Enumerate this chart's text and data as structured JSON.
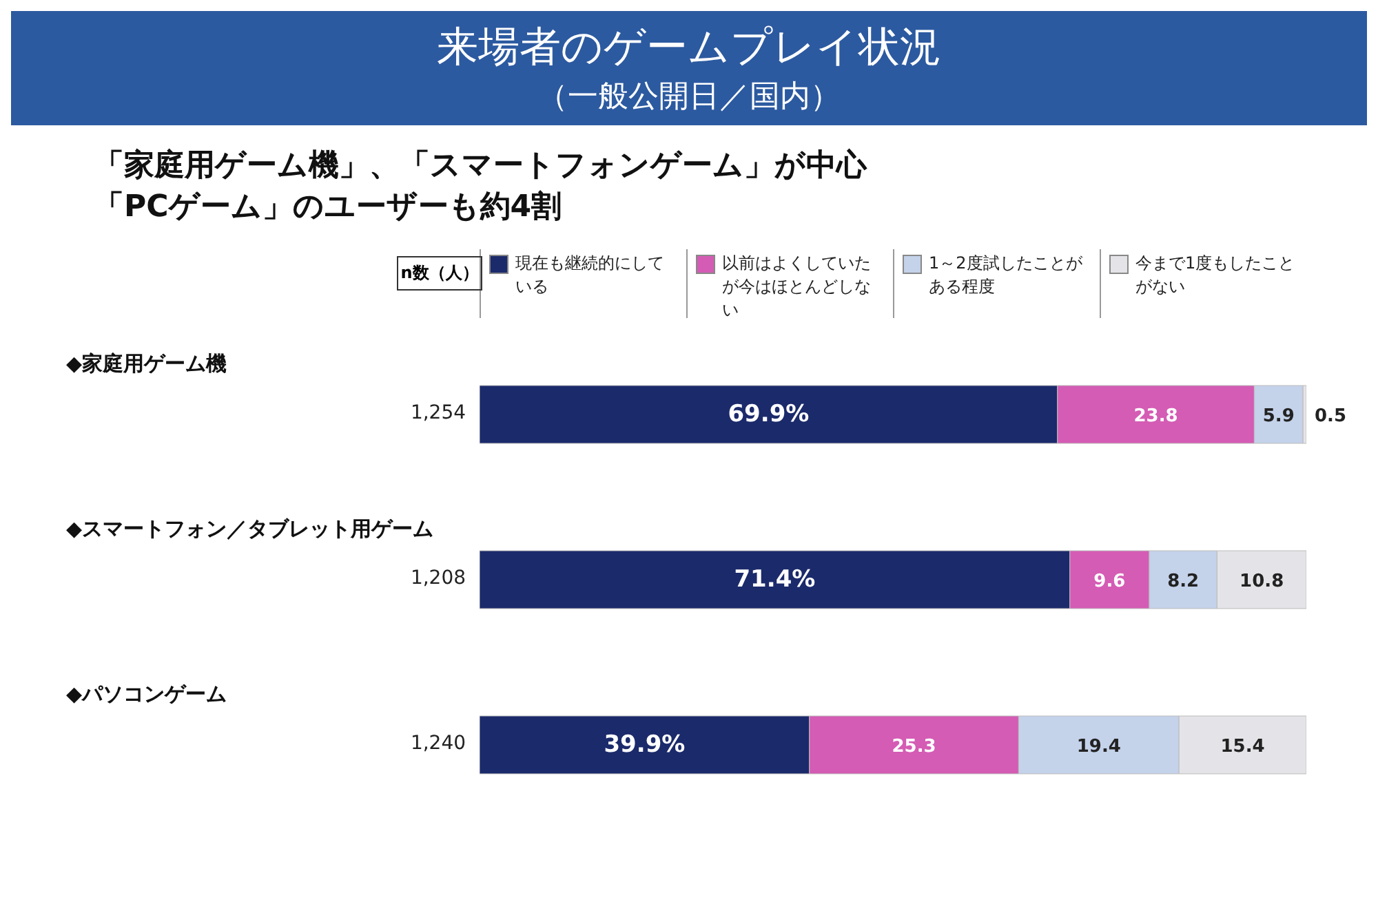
{
  "chart_data": {
    "type": "bar",
    "orientation": "horizontal",
    "stacked": true,
    "title": "来場者のゲームプレイ状況",
    "subtitle": "（一般公開日／国内）",
    "categories": [
      "◆家庭用ゲーム機",
      "◆スマートフォン／タブレット用ゲーム",
      "◆パソコンゲーム"
    ],
    "series": [
      {
        "name": "現在も継続的にしている",
        "color": "#1b2a6b",
        "values": [
          69.9,
          71.4,
          39.9
        ],
        "value_labels": [
          "69.9%",
          "71.4%",
          "39.9%"
        ]
      },
      {
        "name": "以前はよくしていたが今はほとんどしない",
        "color": "#d45cb4",
        "values": [
          23.8,
          9.6,
          25.3
        ],
        "value_labels": [
          "23.8",
          "9.6",
          "25.3"
        ]
      },
      {
        "name": "1～2度試したことがある程度",
        "color": "#c4d2ea",
        "values": [
          5.9,
          8.2,
          19.4
        ],
        "value_labels": [
          "5.9",
          "8.2",
          "19.4"
        ]
      },
      {
        "name": "今まで1度もしたことがない",
        "color": "#e4e4e8",
        "values": [
          0.5,
          10.8,
          15.4
        ],
        "value_labels": [
          "0.5",
          "10.8",
          "15.4"
        ]
      }
    ],
    "xlim": [
      0,
      100
    ],
    "tick_labels": "y",
    "legend": "top",
    "annotations": [
      "「家庭用ゲーム機」、「スマートフォンゲーム」が中心",
      "「PCゲーム」のユーザーも約4割",
      "n数（人）",
      "1,254",
      "1,208",
      "1,240"
    ]
  }
}
